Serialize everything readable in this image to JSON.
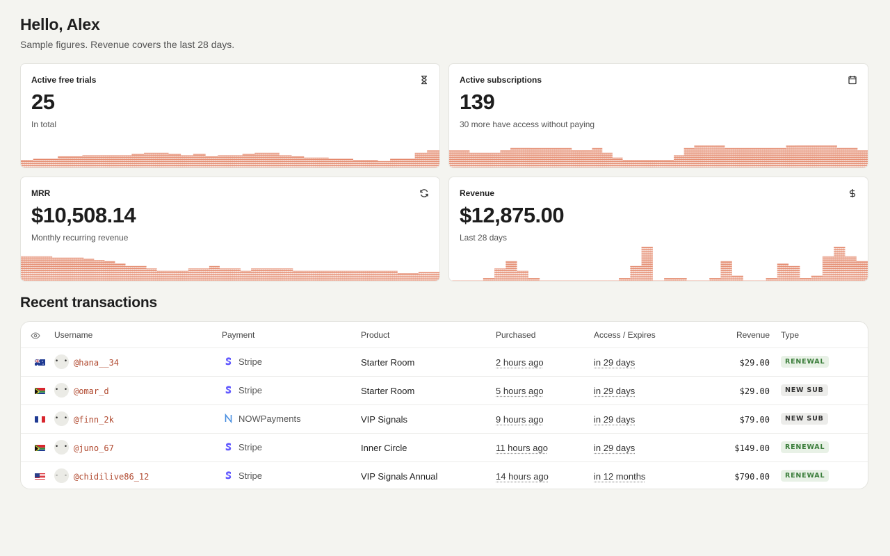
{
  "header": {
    "greeting": "Hello, Alex",
    "subtitle": "Sample figures. Revenue covers the last 28 days."
  },
  "cards": [
    {
      "label": "Active free trials",
      "value": "25",
      "caption": "In total",
      "icon": "hourglass-icon"
    },
    {
      "label": "Active subscriptions",
      "value": "139",
      "caption": "30 more have access without paying",
      "icon": "calendar-icon"
    },
    {
      "label": "MRR",
      "value": "$10,508.14",
      "caption": "Monthly recurring revenue",
      "icon": "refresh-icon"
    },
    {
      "label": "Revenue",
      "value": "$12,875.00",
      "caption": "Last 28 days",
      "icon": "dollar-icon"
    }
  ],
  "sparklines": {
    "color": "#e07a5a",
    "trials": [
      6,
      7,
      7,
      9,
      9,
      10,
      10,
      10,
      10,
      11,
      12,
      12,
      11,
      10,
      11,
      9,
      10,
      10,
      11,
      12,
      12,
      10,
      9,
      8,
      8,
      7,
      7,
      6,
      6,
      5,
      7,
      7,
      12,
      14
    ],
    "subscriptions": [
      14,
      14,
      12,
      12,
      12,
      14,
      16,
      16,
      16,
      16,
      16,
      16,
      14,
      14,
      16,
      12,
      8,
      6,
      6,
      6,
      6,
      6,
      10,
      16,
      18,
      18,
      18,
      16,
      16,
      16,
      16,
      16,
      16,
      18,
      18,
      18,
      18,
      18,
      16,
      16,
      14
    ],
    "mrr": [
      20,
      20,
      20,
      19,
      19,
      19,
      18,
      17,
      16,
      14,
      12,
      12,
      10,
      8,
      8,
      8,
      10,
      10,
      12,
      10,
      10,
      8,
      10,
      10,
      10,
      10,
      8,
      8,
      8,
      8,
      8,
      8,
      8,
      8,
      8,
      8,
      6,
      6,
      7,
      7
    ],
    "revenue": [
      0,
      0,
      0,
      2,
      10,
      16,
      8,
      2,
      0,
      0,
      0,
      0,
      0,
      0,
      0,
      2,
      12,
      28,
      0,
      2,
      2,
      0,
      0,
      2,
      16,
      4,
      0,
      0,
      2,
      14,
      12,
      2,
      4,
      20,
      28,
      20,
      16
    ]
  },
  "transactions": {
    "title": "Recent transactions",
    "columns": {
      "username": "Username",
      "payment": "Payment",
      "product": "Product",
      "purchased": "Purchased",
      "expires": "Access / Expires",
      "revenue": "Revenue",
      "type": "Type"
    },
    "rows": [
      {
        "flag": "AU",
        "avatar": "• •",
        "username": "@hana__34",
        "payment": "Stripe",
        "pay_icon": "stripe-icon",
        "product": "Starter Room",
        "purchased": "2 hours ago",
        "expires": "in 29 days",
        "revenue": "$29.00",
        "type": "RENEWAL",
        "type_style": "renewal"
      },
      {
        "flag": "ZA",
        "avatar": "• •",
        "username": "@omar_d",
        "payment": "Stripe",
        "pay_icon": "stripe-icon",
        "product": "Starter Room",
        "purchased": "5 hours ago",
        "expires": "in 29 days",
        "revenue": "$29.00",
        "type": "NEW SUB",
        "type_style": "newsub"
      },
      {
        "flag": "FR",
        "avatar": "• •",
        "username": "@finn_2k",
        "payment": "NOWPayments",
        "pay_icon": "nowpayments-icon",
        "product": "VIP Signals",
        "purchased": "9 hours ago",
        "expires": "in 29 days",
        "revenue": "$79.00",
        "type": "NEW SUB",
        "type_style": "newsub"
      },
      {
        "flag": "ZA",
        "avatar": "• •",
        "username": "@juno_67",
        "payment": "Stripe",
        "pay_icon": "stripe-icon",
        "product": "Inner Circle",
        "purchased": "11 hours ago",
        "expires": "in 29 days",
        "revenue": "$149.00",
        "type": "RENEWAL",
        "type_style": "renewal"
      },
      {
        "flag": "US",
        "avatar": "- -",
        "username": "@chidilive86_12",
        "payment": "Stripe",
        "pay_icon": "stripe-icon",
        "product": "VIP Signals Annual",
        "purchased": "14 hours ago",
        "expires": "in 12 months",
        "revenue": "$790.00",
        "type": "RENEWAL",
        "type_style": "renewal"
      }
    ]
  }
}
